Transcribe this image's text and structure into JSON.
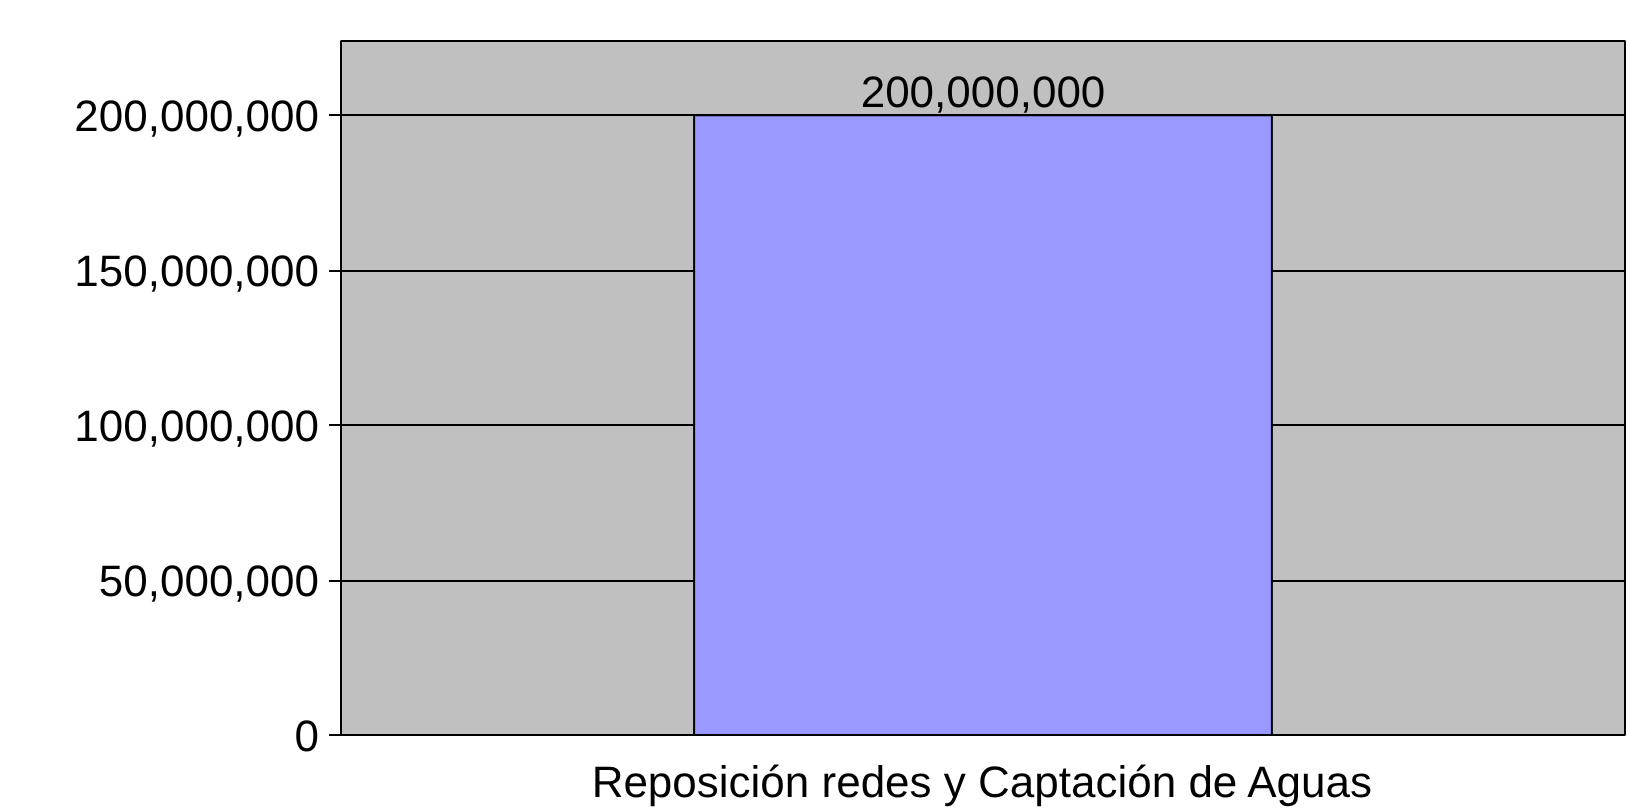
{
  "chart_data": {
    "type": "bar",
    "categories": [
      "Reposición redes y Captación de Aguas"
    ],
    "values": [
      200000000
    ],
    "color": "#9999ff",
    "value_labels": [
      "200,000,000"
    ],
    "ylim": [
      0,
      200000000
    ],
    "yticks": [
      {
        "value": 0,
        "label": "0"
      },
      {
        "value": 50000000,
        "label": "50,000,000"
      },
      {
        "value": 100000000,
        "label": "100,000,000"
      },
      {
        "value": 150000000,
        "label": "150,000,000"
      },
      {
        "value": 200000000,
        "label": "200,000,000"
      }
    ],
    "grid": "y"
  }
}
